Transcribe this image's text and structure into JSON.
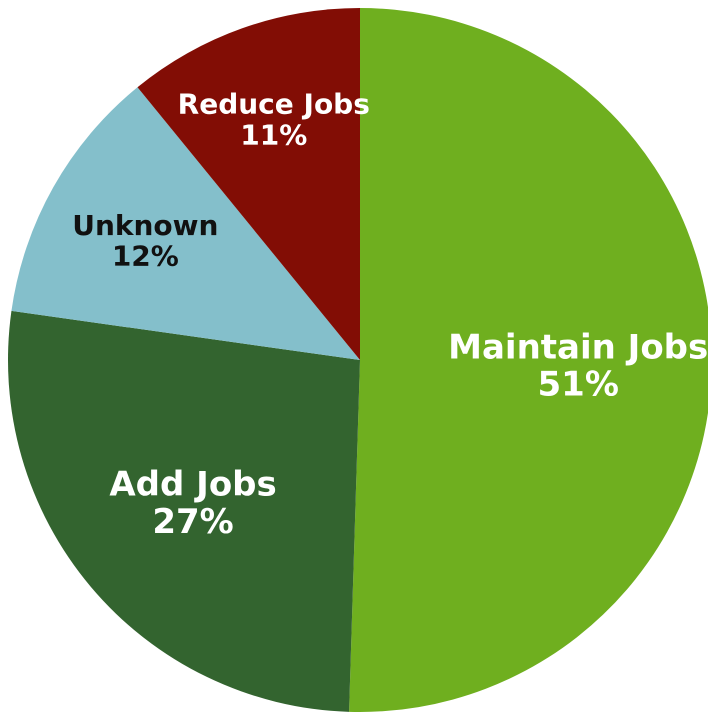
{
  "chart_data": {
    "type": "pie",
    "title": "",
    "start_angle_deg": 0,
    "direction": "clockwise",
    "slices": [
      {
        "label": "Maintain Jobs",
        "value": 51,
        "value_label": "51%",
        "color": "#6faf1f",
        "text_color": "#ffffff"
      },
      {
        "label": "Add Jobs",
        "value": 27,
        "value_label": "27%",
        "color": "#33642f",
        "text_color": "#ffffff"
      },
      {
        "label": "Unknown",
        "value": 12,
        "value_label": "12%",
        "color": "#84bfcb",
        "text_color": "#111111"
      },
      {
        "label": "Reduce Jobs",
        "value": 11,
        "value_label": "11%",
        "color": "#820d05",
        "text_color": "#ffffff"
      }
    ]
  }
}
